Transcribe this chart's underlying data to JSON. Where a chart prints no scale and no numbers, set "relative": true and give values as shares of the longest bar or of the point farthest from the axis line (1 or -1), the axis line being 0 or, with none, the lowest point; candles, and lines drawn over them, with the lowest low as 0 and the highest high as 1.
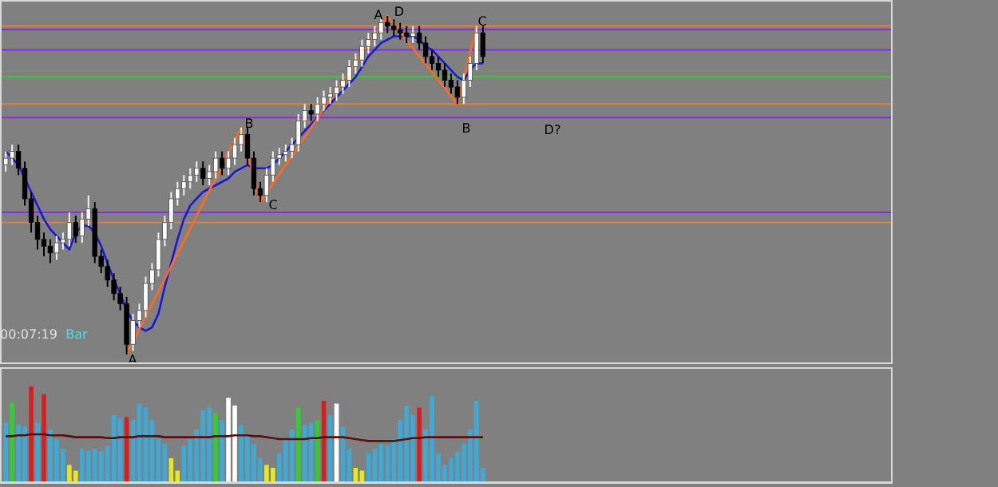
{
  "chart_data": [
    {
      "type": "candlestick",
      "relative": true,
      "categories": [
        null,
        null,
        null,
        null,
        null,
        null,
        null,
        null,
        null,
        null,
        null,
        null,
        null,
        null,
        null,
        null,
        null,
        null,
        null,
        null,
        null,
        null,
        null,
        null,
        null,
        null,
        null,
        null,
        null,
        null,
        null,
        null,
        null,
        null,
        null,
        null,
        null,
        null,
        null,
        null,
        null,
        null,
        null,
        null,
        null,
        null,
        null,
        null,
        null,
        null,
        null,
        null,
        null,
        null,
        null,
        null,
        null,
        null,
        null,
        null,
        null,
        null,
        null,
        null,
        null,
        null,
        null,
        null,
        null,
        null,
        null,
        null,
        null,
        null,
        null,
        null
      ],
      "ohlc": [
        [
          0.56,
          0.6,
          0.54,
          0.58
        ],
        [
          0.58,
          0.62,
          0.56,
          0.6
        ],
        [
          0.6,
          0.62,
          0.53,
          0.55
        ],
        [
          0.55,
          0.57,
          0.44,
          0.46
        ],
        [
          0.46,
          0.48,
          0.36,
          0.39
        ],
        [
          0.39,
          0.41,
          0.31,
          0.34
        ],
        [
          0.34,
          0.36,
          0.29,
          0.32
        ],
        [
          0.32,
          0.34,
          0.27,
          0.3
        ],
        [
          0.3,
          0.35,
          0.28,
          0.33
        ],
        [
          0.33,
          0.36,
          0.31,
          0.34
        ],
        [
          0.34,
          0.42,
          0.32,
          0.39
        ],
        [
          0.39,
          0.41,
          0.33,
          0.35
        ],
        [
          0.35,
          0.42,
          0.33,
          0.4
        ],
        [
          0.4,
          0.47,
          0.38,
          0.43
        ],
        [
          0.43,
          0.45,
          0.27,
          0.29
        ],
        [
          0.29,
          0.31,
          0.24,
          0.26
        ],
        [
          0.26,
          0.28,
          0.2,
          0.22
        ],
        [
          0.22,
          0.24,
          0.16,
          0.18
        ],
        [
          0.18,
          0.2,
          0.13,
          0.15
        ],
        [
          0.15,
          0.17,
          0.0,
          0.03
        ],
        [
          0.03,
          0.12,
          0.01,
          0.1
        ],
        [
          0.1,
          0.15,
          0.08,
          0.13
        ],
        [
          0.13,
          0.23,
          0.11,
          0.21
        ],
        [
          0.21,
          0.27,
          0.19,
          0.25
        ],
        [
          0.25,
          0.36,
          0.23,
          0.34
        ],
        [
          0.34,
          0.41,
          0.32,
          0.39
        ],
        [
          0.39,
          0.48,
          0.37,
          0.46
        ],
        [
          0.46,
          0.51,
          0.44,
          0.49
        ],
        [
          0.49,
          0.53,
          0.47,
          0.51
        ],
        [
          0.51,
          0.55,
          0.49,
          0.53
        ],
        [
          0.53,
          0.57,
          0.51,
          0.55
        ],
        [
          0.55,
          0.57,
          0.5,
          0.52
        ],
        [
          0.52,
          0.56,
          0.5,
          0.54
        ],
        [
          0.54,
          0.6,
          0.52,
          0.58
        ],
        [
          0.58,
          0.6,
          0.53,
          0.55
        ],
        [
          0.55,
          0.6,
          0.53,
          0.58
        ],
        [
          0.58,
          0.64,
          0.56,
          0.62
        ],
        [
          0.62,
          0.67,
          0.6,
          0.65
        ],
        [
          0.65,
          0.67,
          0.56,
          0.58
        ],
        [
          0.58,
          0.6,
          0.47,
          0.49
        ],
        [
          0.49,
          0.51,
          0.45,
          0.47
        ],
        [
          0.47,
          0.55,
          0.45,
          0.53
        ],
        [
          0.53,
          0.6,
          0.51,
          0.58
        ],
        [
          0.58,
          0.61,
          0.56,
          0.59
        ],
        [
          0.59,
          0.62,
          0.57,
          0.6
        ],
        [
          0.6,
          0.64,
          0.58,
          0.62
        ],
        [
          0.62,
          0.71,
          0.6,
          0.69
        ],
        [
          0.69,
          0.74,
          0.67,
          0.72
        ],
        [
          0.72,
          0.74,
          0.69,
          0.71
        ],
        [
          0.71,
          0.76,
          0.69,
          0.74
        ],
        [
          0.74,
          0.78,
          0.72,
          0.76
        ],
        [
          0.76,
          0.79,
          0.74,
          0.77
        ],
        [
          0.77,
          0.81,
          0.75,
          0.79
        ],
        [
          0.79,
          0.83,
          0.77,
          0.81
        ],
        [
          0.81,
          0.87,
          0.79,
          0.85
        ],
        [
          0.85,
          0.89,
          0.83,
          0.87
        ],
        [
          0.87,
          0.93,
          0.85,
          0.91
        ],
        [
          0.91,
          0.95,
          0.89,
          0.93
        ],
        [
          0.93,
          0.97,
          0.91,
          0.95
        ],
        [
          0.95,
          0.99,
          0.93,
          0.98
        ],
        [
          0.98,
          1.0,
          0.95,
          0.97
        ],
        [
          0.97,
          0.99,
          0.94,
          0.96
        ],
        [
          0.96,
          0.98,
          0.93,
          0.95
        ],
        [
          0.95,
          0.97,
          0.92,
          0.94
        ],
        [
          0.94,
          0.97,
          0.92,
          0.95
        ],
        [
          0.95,
          0.97,
          0.9,
          0.92
        ],
        [
          0.92,
          0.94,
          0.86,
          0.88
        ],
        [
          0.88,
          0.9,
          0.84,
          0.86
        ],
        [
          0.86,
          0.88,
          0.82,
          0.84
        ],
        [
          0.84,
          0.86,
          0.79,
          0.81
        ],
        [
          0.81,
          0.83,
          0.77,
          0.79
        ],
        [
          0.79,
          0.81,
          0.74,
          0.76
        ],
        [
          0.76,
          0.83,
          0.74,
          0.81
        ],
        [
          0.81,
          0.88,
          0.79,
          0.86
        ],
        [
          0.86,
          0.97,
          0.84,
          0.95
        ],
        [
          0.95,
          0.97,
          0.86,
          0.88
        ]
      ],
      "series": [
        {
          "type": "line",
          "color": "#1a1ad6",
          "values": [
            0.6,
            0.58,
            0.56,
            0.52,
            0.48,
            0.44,
            0.4,
            0.37,
            0.35,
            0.33,
            0.31,
            0.36,
            0.38,
            0.38,
            0.36,
            0.32,
            0.27,
            0.22,
            0.18,
            0.13,
            0.1,
            0.08,
            0.07,
            0.08,
            0.12,
            0.2,
            0.27,
            0.34,
            0.4,
            0.44,
            0.46,
            0.48,
            0.49,
            0.5,
            0.51,
            0.52,
            0.54,
            0.55,
            0.56,
            0.55,
            0.55,
            0.55,
            0.56,
            0.58,
            0.6,
            0.62,
            0.64,
            0.66,
            0.68,
            0.7,
            0.72,
            0.74,
            0.76,
            0.78,
            0.8,
            0.82,
            0.85,
            0.88,
            0.9,
            0.92,
            0.93,
            0.94,
            0.94,
            0.94,
            0.94,
            0.93,
            0.91,
            0.9,
            0.88,
            0.86,
            0.84,
            0.82,
            0.81,
            0.84,
            0.86,
            0.86
          ]
        },
        {
          "type": "line",
          "color": "#ff6a20",
          "values": [
            null,
            null,
            null,
            null,
            null,
            null,
            null,
            null,
            null,
            null,
            null,
            null,
            null,
            null,
            null,
            null,
            null,
            null,
            null,
            0.0,
            null,
            null,
            null,
            null,
            null,
            null,
            null,
            null,
            null,
            null,
            null,
            null,
            null,
            null,
            null,
            null,
            null,
            0.67,
            null,
            null,
            0.45,
            null,
            null,
            null,
            null,
            null,
            null,
            null,
            null,
            null,
            null,
            null,
            null,
            null,
            null,
            null,
            null,
            null,
            null,
            null,
            1.0,
            null,
            null,
            null,
            null,
            null,
            null,
            null,
            null,
            null,
            null,
            0.74,
            null,
            null,
            0.97,
            null
          ]
        }
      ],
      "ref_lines": [
        {
          "axis": "y",
          "value": 0.97,
          "color": "#e0803a"
        },
        {
          "axis": "y",
          "value": 0.96,
          "color": "#8a2be2"
        },
        {
          "axis": "y",
          "value": 0.9,
          "color": "#8a2be2"
        },
        {
          "axis": "y",
          "value": 0.82,
          "color": "#33cc33"
        },
        {
          "axis": "y",
          "value": 0.74,
          "color": "#e0803a"
        },
        {
          "axis": "y",
          "value": 0.7,
          "color": "#8a2be2"
        },
        {
          "axis": "y",
          "value": 0.42,
          "color": "#8a2be2"
        },
        {
          "axis": "y",
          "value": 0.39,
          "color": "#e0803a"
        }
      ],
      "annotations": [
        "A",
        "B",
        "C",
        "A",
        "D",
        "B",
        "C",
        "D?",
        "00:07:19",
        "Bar"
      ]
    },
    {
      "type": "bar",
      "relative": true,
      "categories": [
        null,
        null,
        null,
        null,
        null,
        null,
        null,
        null,
        null,
        null,
        null,
        null,
        null,
        null,
        null,
        null,
        null,
        null,
        null,
        null,
        null,
        null,
        null,
        null,
        null,
        null,
        null,
        null,
        null,
        null,
        null,
        null,
        null,
        null,
        null,
        null,
        null,
        null,
        null,
        null,
        null,
        null,
        null,
        null,
        null,
        null,
        null,
        null,
        null,
        null,
        null,
        null,
        null,
        null,
        null,
        null,
        null,
        null,
        null,
        null,
        null,
        null,
        null,
        null,
        null,
        null,
        null,
        null,
        null,
        null,
        null,
        null,
        null,
        null,
        null,
        null
      ],
      "values": [
        0.62,
        0.83,
        0.6,
        0.58,
        1.0,
        0.62,
        0.92,
        0.55,
        0.45,
        0.35,
        0.18,
        0.12,
        0.35,
        0.33,
        0.35,
        0.32,
        0.38,
        0.7,
        0.67,
        0.68,
        0.65,
        0.82,
        0.78,
        0.65,
        0.45,
        0.4,
        0.25,
        0.12,
        0.38,
        0.45,
        0.55,
        0.75,
        0.78,
        0.72,
        0.65,
        0.88,
        0.8,
        0.6,
        0.5,
        0.4,
        0.25,
        0.18,
        0.15,
        0.3,
        0.45,
        0.55,
        0.78,
        0.6,
        0.62,
        0.65,
        0.85,
        0.7,
        0.82,
        0.58,
        0.35,
        0.15,
        0.12,
        0.3,
        0.35,
        0.4,
        0.38,
        0.45,
        0.65,
        0.8,
        0.7,
        0.78,
        0.55,
        0.9,
        0.3,
        0.18,
        0.25,
        0.32,
        0.4,
        0.55,
        0.85,
        0.15
      ],
      "colors": [
        "#3fa9d6",
        "#33cc33",
        "#3fa9d6",
        "#3fa9d6",
        "#d42020",
        "#3fa9d6",
        "#d42020",
        "#3fa9d6",
        "#3fa9d6",
        "#3fa9d6",
        "#e8e820",
        "#e8e820",
        "#3fa9d6",
        "#3fa9d6",
        "#3fa9d6",
        "#3fa9d6",
        "#3fa9d6",
        "#3fa9d6",
        "#3fa9d6",
        "#d42020",
        "#3fa9d6",
        "#3fa9d6",
        "#3fa9d6",
        "#3fa9d6",
        "#3fa9d6",
        "#3fa9d6",
        "#e8e820",
        "#e8e820",
        "#3fa9d6",
        "#3fa9d6",
        "#3fa9d6",
        "#3fa9d6",
        "#3fa9d6",
        "#33cc33",
        "#3fa9d6",
        "#ffffff",
        "#ffffff",
        "#3fa9d6",
        "#3fa9d6",
        "#3fa9d6",
        "#3fa9d6",
        "#e8e820",
        "#e8e820",
        "#3fa9d6",
        "#3fa9d6",
        "#3fa9d6",
        "#33cc33",
        "#3fa9d6",
        "#3fa9d6",
        "#33cc33",
        "#d42020",
        "#3fa9d6",
        "#ffffff",
        "#3fa9d6",
        "#3fa9d6",
        "#e8e820",
        "#e8e820",
        "#3fa9d6",
        "#3fa9d6",
        "#3fa9d6",
        "#3fa9d6",
        "#3fa9d6",
        "#3fa9d6",
        "#3fa9d6",
        "#3fa9d6",
        "#d42020",
        "#3fa9d6",
        "#3fa9d6",
        "#3fa9d6",
        "#3fa9d6",
        "#3fa9d6",
        "#3fa9d6",
        "#3fa9d6",
        "#3fa9d6",
        "#3fa9d6",
        "#3fa9d6"
      ]
    },
    {
      "type": "line",
      "relative": true,
      "color": "#5a1010",
      "categories": [
        null,
        null,
        null,
        null,
        null,
        null,
        null,
        null,
        null,
        null,
        null,
        null,
        null,
        null,
        null,
        null,
        null,
        null,
        null,
        null,
        null,
        null,
        null,
        null,
        null,
        null,
        null,
        null,
        null,
        null,
        null,
        null,
        null,
        null,
        null,
        null,
        null,
        null,
        null,
        null,
        null,
        null,
        null,
        null,
        null,
        null,
        null,
        null,
        null,
        null,
        null,
        null,
        null,
        null,
        null,
        null,
        null,
        null,
        null,
        null,
        null,
        null,
        null,
        null,
        null,
        null,
        null,
        null,
        null,
        null,
        null,
        null,
        null,
        null,
        null,
        null
      ],
      "values": [
        0.96,
        0.96,
        0.98,
        0.98,
        1.0,
        1.0,
        1.0,
        0.98,
        0.98,
        0.98,
        0.96,
        0.94,
        0.94,
        0.94,
        0.94,
        0.94,
        0.92,
        0.92,
        0.94,
        0.94,
        0.94,
        0.96,
        0.96,
        0.96,
        0.96,
        0.94,
        0.94,
        0.94,
        0.94,
        0.94,
        0.94,
        0.94,
        0.94,
        0.96,
        0.96,
        0.96,
        0.98,
        0.98,
        0.98,
        0.96,
        0.96,
        0.94,
        0.92,
        0.9,
        0.9,
        0.9,
        0.9,
        0.9,
        0.92,
        0.92,
        0.94,
        0.94,
        0.94,
        0.94,
        0.92,
        0.9,
        0.88,
        0.86,
        0.86,
        0.86,
        0.86,
        0.86,
        0.88,
        0.9,
        0.92,
        0.92,
        0.94,
        0.94,
        0.94,
        0.94,
        0.94,
        0.94,
        0.94,
        0.94,
        0.94,
        0.94
      ]
    }
  ]
}
